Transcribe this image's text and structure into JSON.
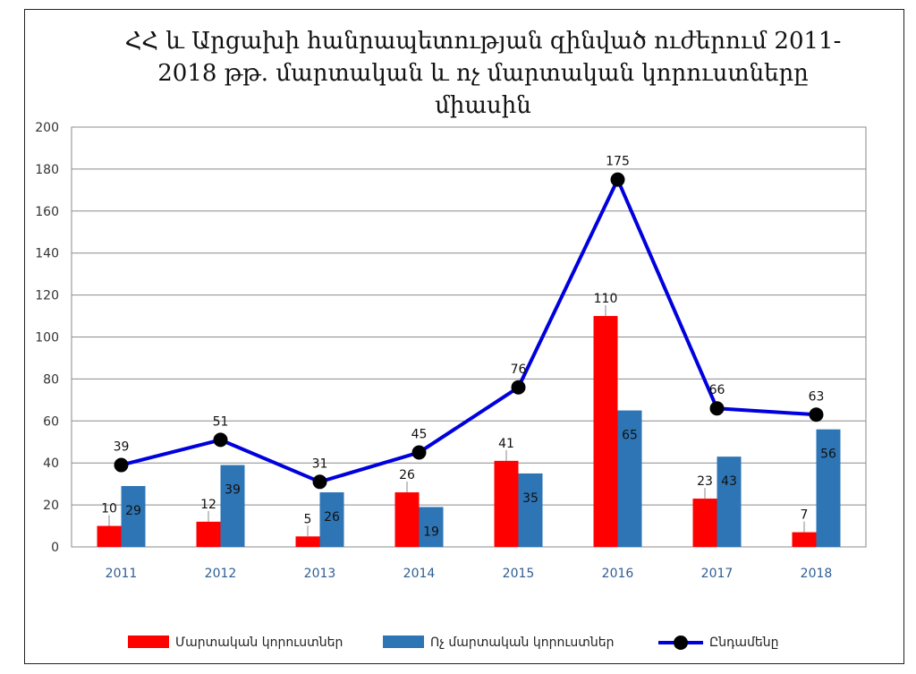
{
  "chart_data": {
    "type": "bar",
    "title_lines": [
      "ՀՀ  և  Արցախի հանրապետության զինված  ուժերում  2011-",
      "2018 թթ.  մարտական  և  ոչ մարտական կորուստները",
      "միասին"
    ],
    "categories": [
      "2011",
      "2012",
      "2013",
      "2014",
      "2015",
      "2016",
      "2017",
      "2018"
    ],
    "series": [
      {
        "name": "Մարտական կորուստներ",
        "kind": "bar",
        "color": "#ff0000",
        "values": [
          10,
          12,
          5,
          26,
          41,
          110,
          23,
          7
        ]
      },
      {
        "name": "Ոչ մարտական կորուստներ",
        "kind": "bar",
        "color": "#2e75b6",
        "values": [
          29,
          39,
          26,
          19,
          35,
          65,
          43,
          56
        ]
      },
      {
        "name": "Ընդամենը",
        "kind": "line",
        "color": "#0000dd",
        "marker_color": "#000000",
        "values": [
          39,
          51,
          31,
          45,
          76,
          175,
          66,
          63
        ]
      }
    ],
    "ylim": [
      0,
      200
    ],
    "yticks": [
      0,
      20,
      40,
      60,
      80,
      100,
      120,
      140,
      160,
      180,
      200
    ],
    "grid": true,
    "legend_position": "bottom"
  }
}
